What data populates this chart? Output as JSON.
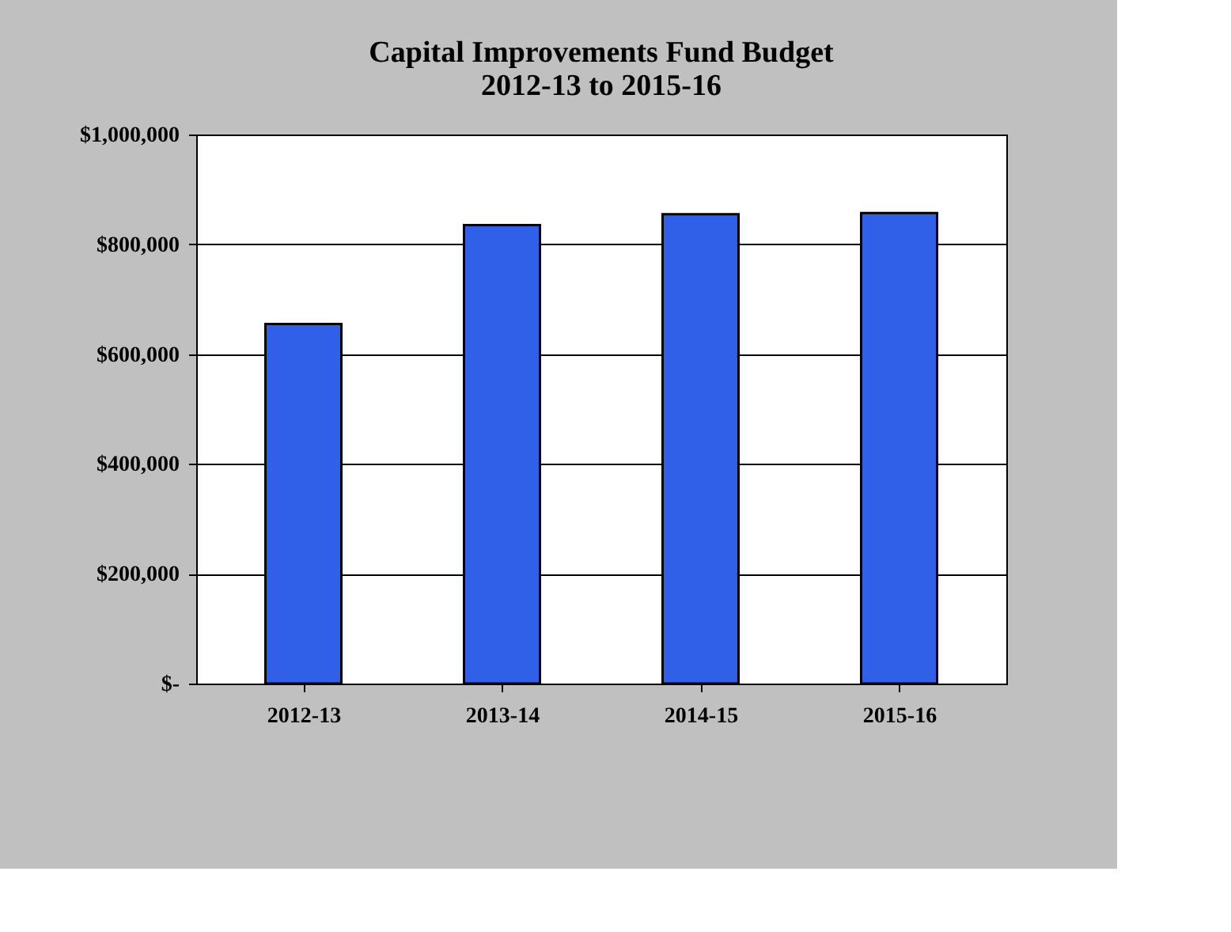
{
  "chart_data": {
    "type": "bar",
    "title": [
      "Capital Improvements Fund Budget",
      "2012-13 to 2015-16"
    ],
    "categories": [
      "2012-13",
      "2013-14",
      "2014-15",
      "2015-16"
    ],
    "values": [
      655000,
      835000,
      855000,
      857000
    ],
    "color": "#3060e8",
    "ylim": [
      0,
      1000000
    ],
    "yticks": [
      {
        "value": 0,
        "label": "$-"
      },
      {
        "value": 200000,
        "label": "$200,000"
      },
      {
        "value": 400000,
        "label": "$400,000"
      },
      {
        "value": 600000,
        "label": "$600,000"
      },
      {
        "value": 800000,
        "label": "$800,000"
      },
      {
        "value": 1000000,
        "label": "$1,000,000"
      }
    ],
    "grid": "y"
  }
}
